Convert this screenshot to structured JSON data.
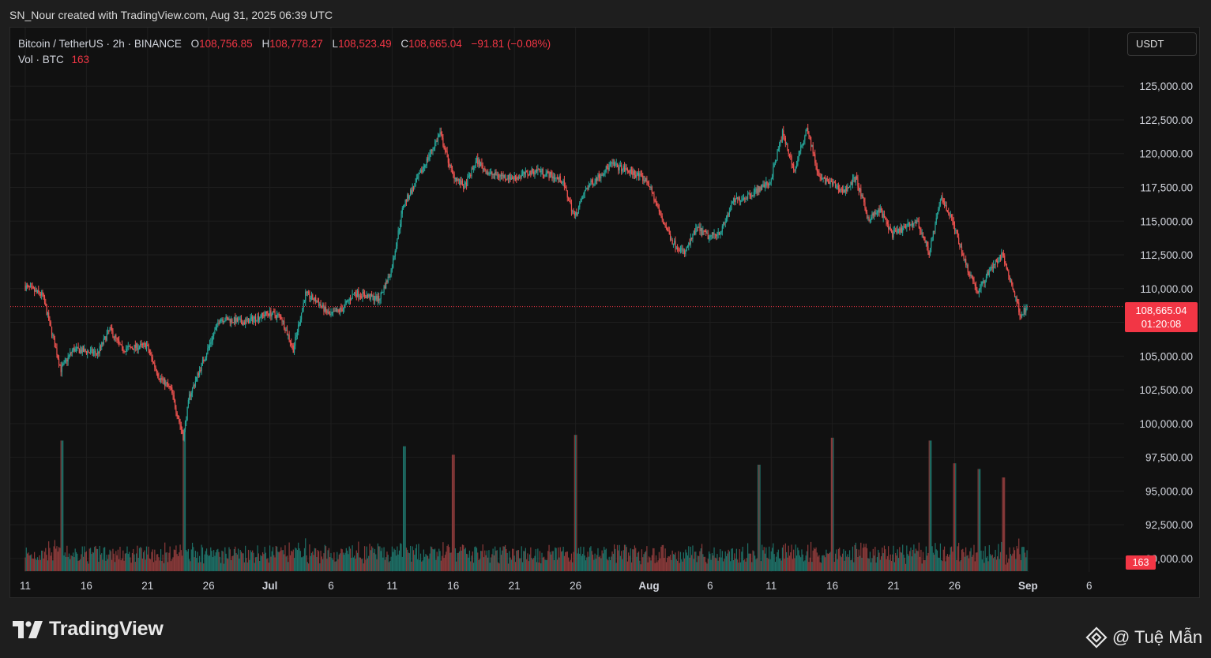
{
  "header": {
    "credit": "SN_Nour created with TradingView.com, Aug 31, 2025 06:39 UTC"
  },
  "legend": {
    "symbol": "Bitcoin / TetherUS · 2h · BINANCE",
    "open_key": "O",
    "open": "108,756.85",
    "high_key": "H",
    "high": "108,778.27",
    "low_key": "L",
    "low": "108,523.49",
    "close_key": "C",
    "close": "108,665.04",
    "change": "−91.81 (−0.08%)",
    "volume_label": "Vol · BTC",
    "volume_value": "163"
  },
  "currency_button": "USDT",
  "price_tag": {
    "price": "108,665.04",
    "countdown": "01:20:08"
  },
  "volume_tag": "163",
  "footer": {
    "brand": "TradingView",
    "watermark": "@ Tuệ Mẫn"
  },
  "colors": {
    "up": "#26a69a",
    "down": "#ef5350",
    "up_volume": "#1e6f66",
    "down_volume": "#8a3a3a",
    "last_price": "#f23645",
    "background": "#111111",
    "grid": "#1e1e1e"
  },
  "chart_data": {
    "type": "candlestick",
    "interval": "2h",
    "ylim": [
      89000,
      127000
    ],
    "y_ticks": [
      "125,000.00",
      "122,500.00",
      "120,000.00",
      "117,500.00",
      "115,000.00",
      "112,500.00",
      "110,000.00",
      "107,500.00",
      "105,000.00",
      "102,500.00",
      "100,000.00",
      "97,500.00",
      "95,000.00",
      "92,500.00",
      "90,000.00"
    ],
    "y_tick_values": [
      125000,
      122500,
      120000,
      117500,
      115000,
      112500,
      110000,
      107500,
      105000,
      102500,
      100000,
      97500,
      95000,
      92500,
      90000
    ],
    "x_ticks": [
      {
        "label": "11",
        "day": 0
      },
      {
        "label": "16",
        "day": 5
      },
      {
        "label": "21",
        "day": 10
      },
      {
        "label": "26",
        "day": 15
      },
      {
        "label": "Jul",
        "day": 20,
        "bold": true
      },
      {
        "label": "6",
        "day": 25
      },
      {
        "label": "11",
        "day": 30
      },
      {
        "label": "16",
        "day": 35
      },
      {
        "label": "21",
        "day": 40
      },
      {
        "label": "26",
        "day": 45
      },
      {
        "label": "Aug",
        "day": 51,
        "bold": true
      },
      {
        "label": "6",
        "day": 56
      },
      {
        "label": "11",
        "day": 61
      },
      {
        "label": "16",
        "day": 66
      },
      {
        "label": "21",
        "day": 71
      },
      {
        "label": "26",
        "day": 76
      },
      {
        "label": "Sep",
        "day": 82,
        "bold": true
      },
      {
        "label": "6",
        "day": 87
      }
    ],
    "last_price": 108665.04,
    "last_volume": 163,
    "price_path": [
      [
        0,
        110200
      ],
      [
        1.5,
        109500
      ],
      [
        3,
        104000
      ],
      [
        4,
        105500
      ],
      [
        6,
        105200
      ],
      [
        7,
        107000
      ],
      [
        8,
        105500
      ],
      [
        10,
        105800
      ],
      [
        11,
        103500
      ],
      [
        12,
        102500
      ],
      [
        13,
        99000
      ],
      [
        13.5,
        102000
      ],
      [
        15,
        105500
      ],
      [
        16,
        107800
      ],
      [
        18,
        107500
      ],
      [
        20,
        108200
      ],
      [
        21,
        107900
      ],
      [
        22,
        105500
      ],
      [
        23,
        109600
      ],
      [
        24,
        109000
      ],
      [
        25,
        108000
      ],
      [
        26,
        108500
      ],
      [
        27,
        109700
      ],
      [
        29,
        109200
      ],
      [
        30,
        111300
      ],
      [
        31,
        116200
      ],
      [
        32,
        117800
      ],
      [
        34,
        121500
      ],
      [
        35,
        118500
      ],
      [
        36,
        117500
      ],
      [
        37,
        119500
      ],
      [
        38,
        118500
      ],
      [
        40,
        118200
      ],
      [
        42,
        118800
      ],
      [
        44,
        118000
      ],
      [
        45,
        115300
      ],
      [
        46,
        117500
      ],
      [
        48,
        119200
      ],
      [
        50,
        118500
      ],
      [
        51,
        117900
      ],
      [
        52,
        115500
      ],
      [
        53,
        113500
      ],
      [
        54,
        112600
      ],
      [
        55,
        114500
      ],
      [
        56,
        113800
      ],
      [
        57,
        114300
      ],
      [
        58,
        116500
      ],
      [
        59,
        116800
      ],
      [
        61,
        117900
      ],
      [
        62,
        121500
      ],
      [
        63,
        118700
      ],
      [
        64,
        122000
      ],
      [
        65,
        118200
      ],
      [
        66,
        117800
      ],
      [
        67,
        117200
      ],
      [
        68,
        118200
      ],
      [
        69,
        115200
      ],
      [
        70,
        115800
      ],
      [
        71,
        114000
      ],
      [
        72,
        114500
      ],
      [
        73,
        115000
      ],
      [
        74,
        112700
      ],
      [
        75,
        116800
      ],
      [
        76,
        114800
      ],
      [
        77,
        111800
      ],
      [
        78,
        109700
      ],
      [
        79,
        111500
      ],
      [
        80,
        112500
      ],
      [
        81,
        109500
      ],
      [
        81.5,
        108000
      ],
      [
        82,
        108700
      ]
    ],
    "volume_spikes": [
      [
        3,
        92
      ],
      [
        13,
        98
      ],
      [
        31,
        88
      ],
      [
        35,
        82
      ],
      [
        45,
        96
      ],
      [
        60,
        75
      ],
      [
        66,
        94
      ],
      [
        74,
        92
      ],
      [
        76,
        76
      ],
      [
        80,
        66
      ],
      [
        78,
        72
      ]
    ]
  }
}
